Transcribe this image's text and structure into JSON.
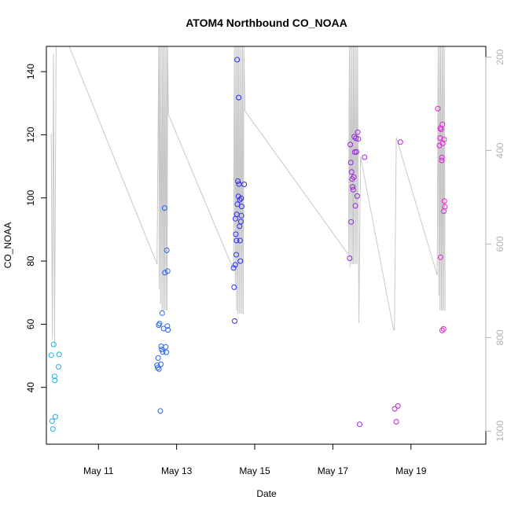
{
  "chart_data": {
    "type": "scatter",
    "title": "ATOM4 Northbound CO_NOAA",
    "xlabel": "Date",
    "ylabel": "CO_NOAA",
    "xlim": [
      "2016-05-09T16:00",
      "2016-05-20T22:00"
    ],
    "ylim": [
      22,
      148
    ],
    "x_ticks": [
      "2016-05-11",
      "2016-05-13",
      "2016-05-15",
      "2016-05-17",
      "2016-05-19"
    ],
    "x_tick_labels": [
      "May 11",
      "May 13",
      "May 15",
      "May 17",
      "May 19"
    ],
    "y_ticks": [
      40,
      60,
      80,
      100,
      120,
      140
    ],
    "y2_ticks": [
      200,
      400,
      600,
      800,
      1000
    ],
    "y2_lim": [
      1028,
      177
    ],
    "y2_reversed": true,
    "grid": false,
    "colors": {
      "points_start": "#1fb0f0",
      "points_mid": "#2d28f0",
      "points_end": "#ee1bdc",
      "pressure_line": "#c8c8c8",
      "right_axis": "#b3b3b3"
    },
    "series": [
      {
        "points": [
          [
            "2016-05-09T19:00",
            50.2
          ],
          [
            "2016-05-09T19:30",
            29.3
          ],
          [
            "2016-05-09T20:00",
            26.8
          ],
          [
            "2016-05-09T20:30",
            53.6
          ],
          [
            "2016-05-09T21:00",
            43.5
          ],
          [
            "2016-05-09T21:10",
            42.2
          ],
          [
            "2016-05-09T21:30",
            30.7
          ],
          [
            "2016-05-09T23:30",
            46.5
          ],
          [
            "2016-05-09T23:50",
            50.4
          ],
          [
            "2016-05-12T12:00",
            47.0
          ],
          [
            "2016-05-12T12:20",
            46.2
          ],
          [
            "2016-05-12T12:40",
            49.3
          ],
          [
            "2016-05-12T13:00",
            59.7
          ],
          [
            "2016-05-12T13:10",
            45.8
          ],
          [
            "2016-05-12T13:30",
            60.2
          ],
          [
            "2016-05-12T14:00",
            32.5
          ],
          [
            "2016-05-12T14:20",
            47.3
          ],
          [
            "2016-05-12T14:30",
            53.0
          ],
          [
            "2016-05-12T14:50",
            52.0
          ],
          [
            "2016-05-12T15:10",
            63.5
          ],
          [
            "2016-05-12T15:30",
            51.2
          ],
          [
            "2016-05-12T16:00",
            58.6
          ],
          [
            "2016-05-12T16:40",
            96.8
          ],
          [
            "2016-05-12T16:50",
            76.3
          ],
          [
            "2016-05-12T17:20",
            52.8
          ],
          [
            "2016-05-12T17:40",
            51.1
          ],
          [
            "2016-05-12T18:00",
            83.4
          ],
          [
            "2016-05-12T18:20",
            59.4
          ],
          [
            "2016-05-12T18:30",
            76.8
          ],
          [
            "2016-05-12T18:40",
            58.2
          ],
          [
            "2016-05-14T11:00",
            77.8
          ],
          [
            "2016-05-14T11:20",
            71.7
          ],
          [
            "2016-05-14T11:40",
            61.0
          ],
          [
            "2016-05-14T12:00",
            78.8
          ],
          [
            "2016-05-14T12:10",
            93.4
          ],
          [
            "2016-05-14T12:20",
            88.5
          ],
          [
            "2016-05-14T12:40",
            82.0
          ],
          [
            "2016-05-14T12:50",
            86.5
          ],
          [
            "2016-05-14T13:00",
            94.8
          ],
          [
            "2016-05-14T13:10",
            143.8
          ],
          [
            "2016-05-14T13:20",
            98.0
          ],
          [
            "2016-05-14T13:40",
            105.3
          ],
          [
            "2016-05-14T14:00",
            100.5
          ],
          [
            "2016-05-14T14:10",
            131.8
          ],
          [
            "2016-05-14T14:20",
            104.4
          ],
          [
            "2016-05-14T14:40",
            91.0
          ],
          [
            "2016-05-14T14:50",
            99.4
          ],
          [
            "2016-05-14T15:00",
            86.5
          ],
          [
            "2016-05-14T15:10",
            80.0
          ],
          [
            "2016-05-14T15:30",
            92.5
          ],
          [
            "2016-05-14T15:40",
            99.9
          ],
          [
            "2016-05-14T15:50",
            94.4
          ],
          [
            "2016-05-14T16:00",
            97.3
          ],
          [
            "2016-05-14T17:30",
            104.3
          ],
          [
            "2016-05-17T10:20",
            80.9
          ],
          [
            "2016-05-17T10:40",
            116.9
          ],
          [
            "2016-05-17T11:00",
            111.2
          ],
          [
            "2016-05-17T11:10",
            92.4
          ],
          [
            "2016-05-17T11:30",
            108.2
          ],
          [
            "2016-05-17T11:50",
            106.0
          ],
          [
            "2016-05-17T12:10",
            103.5
          ],
          [
            "2016-05-17T12:30",
            102.6
          ],
          [
            "2016-05-17T12:50",
            106.6
          ],
          [
            "2016-05-17T13:10",
            119.4
          ],
          [
            "2016-05-17T13:30",
            114.5
          ],
          [
            "2016-05-17T13:50",
            97.5
          ],
          [
            "2016-05-17T14:10",
            118.9
          ],
          [
            "2016-05-17T14:30",
            114.6
          ],
          [
            "2016-05-17T15:00",
            100.6
          ],
          [
            "2016-05-17T15:20",
            120.8
          ],
          [
            "2016-05-17T15:40",
            118.7
          ],
          [
            "2016-05-17T16:30",
            28.3
          ],
          [
            "2016-05-17T19:30",
            112.9
          ],
          [
            "2016-05-18T14:00",
            33.2
          ],
          [
            "2016-05-18T15:00",
            29.1
          ],
          [
            "2016-05-18T16:00",
            34.1
          ],
          [
            "2016-05-18T17:30",
            117.7
          ],
          [
            "2016-05-19T16:30",
            128.3
          ],
          [
            "2016-05-19T17:30",
            116.6
          ],
          [
            "2016-05-19T17:50",
            119.0
          ],
          [
            "2016-05-19T18:00",
            122.1
          ],
          [
            "2016-05-19T18:10",
            81.2
          ],
          [
            "2016-05-19T18:30",
            121.7
          ],
          [
            "2016-05-19T18:50",
            111.9
          ],
          [
            "2016-05-19T19:00",
            112.8
          ],
          [
            "2016-05-19T19:10",
            58.0
          ],
          [
            "2016-05-19T19:20",
            123.3
          ],
          [
            "2016-05-19T19:30",
            117.3
          ],
          [
            "2016-05-19T20:00",
            58.5
          ],
          [
            "2016-05-19T20:10",
            95.8
          ],
          [
            "2016-05-19T20:20",
            118.5
          ],
          [
            "2016-05-19T20:30",
            99.0
          ],
          [
            "2016-05-19T20:50",
            97.2
          ]
        ]
      },
      {
        "axis": "right",
        "kind": "line",
        "points": [
          [
            "2016-05-09T19:00",
            364
          ],
          [
            "2016-05-09T19:40",
            803
          ],
          [
            "2016-05-09T20:20",
            193
          ],
          [
            "2016-05-09T21:00",
            820
          ],
          [
            "2016-05-09T22:00",
            177
          ],
          [
            "2016-05-10T06:00",
            177
          ],
          [
            "2016-05-12T12:00",
            643
          ],
          [
            "2016-05-12T13:00",
            177
          ],
          [
            "2016-05-12T13:20",
            696
          ],
          [
            "2016-05-12T13:40",
            177
          ],
          [
            "2016-05-12T14:10",
            728
          ],
          [
            "2016-05-12T14:30",
            177
          ],
          [
            "2016-05-12T15:00",
            742
          ],
          [
            "2016-05-12T15:20",
            177
          ],
          [
            "2016-05-12T15:50",
            742
          ],
          [
            "2016-05-12T16:10",
            177
          ],
          [
            "2016-05-12T16:40",
            742
          ],
          [
            "2016-05-12T17:00",
            177
          ],
          [
            "2016-05-12T17:30",
            742
          ],
          [
            "2016-05-12T17:50",
            177
          ],
          [
            "2016-05-12T18:10",
            742
          ],
          [
            "2016-05-12T18:30",
            177
          ],
          [
            "2016-05-12T19:00",
            323
          ],
          [
            "2016-05-14T11:00",
            655
          ],
          [
            "2016-05-14T11:30",
            177
          ],
          [
            "2016-05-14T12:00",
            696
          ],
          [
            "2016-05-14T12:20",
            177
          ],
          [
            "2016-05-14T12:50",
            742
          ],
          [
            "2016-05-14T13:10",
            177
          ],
          [
            "2016-05-14T13:40",
            749
          ],
          [
            "2016-05-14T14:00",
            177
          ],
          [
            "2016-05-14T14:30",
            749
          ],
          [
            "2016-05-14T14:50",
            177
          ],
          [
            "2016-05-14T15:20",
            749
          ],
          [
            "2016-05-14T15:40",
            177
          ],
          [
            "2016-05-14T16:10",
            749
          ],
          [
            "2016-05-14T16:30",
            177
          ],
          [
            "2016-05-14T17:00",
            749
          ],
          [
            "2016-05-14T17:20",
            177
          ],
          [
            "2016-05-14T18:00",
            315
          ],
          [
            "2016-05-17T09:40",
            623
          ],
          [
            "2016-05-17T10:10",
            177
          ],
          [
            "2016-05-17T10:30",
            651
          ],
          [
            "2016-05-17T11:00",
            177
          ],
          [
            "2016-05-17T11:30",
            643
          ],
          [
            "2016-05-17T11:50",
            177
          ],
          [
            "2016-05-17T12:20",
            643
          ],
          [
            "2016-05-17T12:40",
            177
          ],
          [
            "2016-05-17T13:00",
            643
          ],
          [
            "2016-05-17T13:30",
            177
          ],
          [
            "2016-05-17T14:00",
            643
          ],
          [
            "2016-05-17T14:20",
            177
          ],
          [
            "2016-05-17T14:50",
            643
          ],
          [
            "2016-05-17T15:10",
            177
          ],
          [
            "2016-05-17T16:00",
            769
          ],
          [
            "2016-05-17T17:00",
            413
          ],
          [
            "2016-05-18T13:20",
            784
          ],
          [
            "2016-05-18T13:50",
            784
          ],
          [
            "2016-05-18T15:00",
            372
          ],
          [
            "2016-05-19T16:10",
            667
          ],
          [
            "2016-05-19T16:40",
            177
          ],
          [
            "2016-05-19T17:10",
            710
          ],
          [
            "2016-05-19T17:30",
            177
          ],
          [
            "2016-05-19T17:50",
            742
          ],
          [
            "2016-05-19T18:10",
            177
          ],
          [
            "2016-05-19T18:40",
            742
          ],
          [
            "2016-05-19T19:00",
            177
          ],
          [
            "2016-05-19T19:20",
            742
          ],
          [
            "2016-05-19T19:40",
            177
          ],
          [
            "2016-05-19T20:10",
            742
          ],
          [
            "2016-05-19T20:30",
            177
          ],
          [
            "2016-05-19T21:00",
            742
          ]
        ]
      }
    ]
  }
}
